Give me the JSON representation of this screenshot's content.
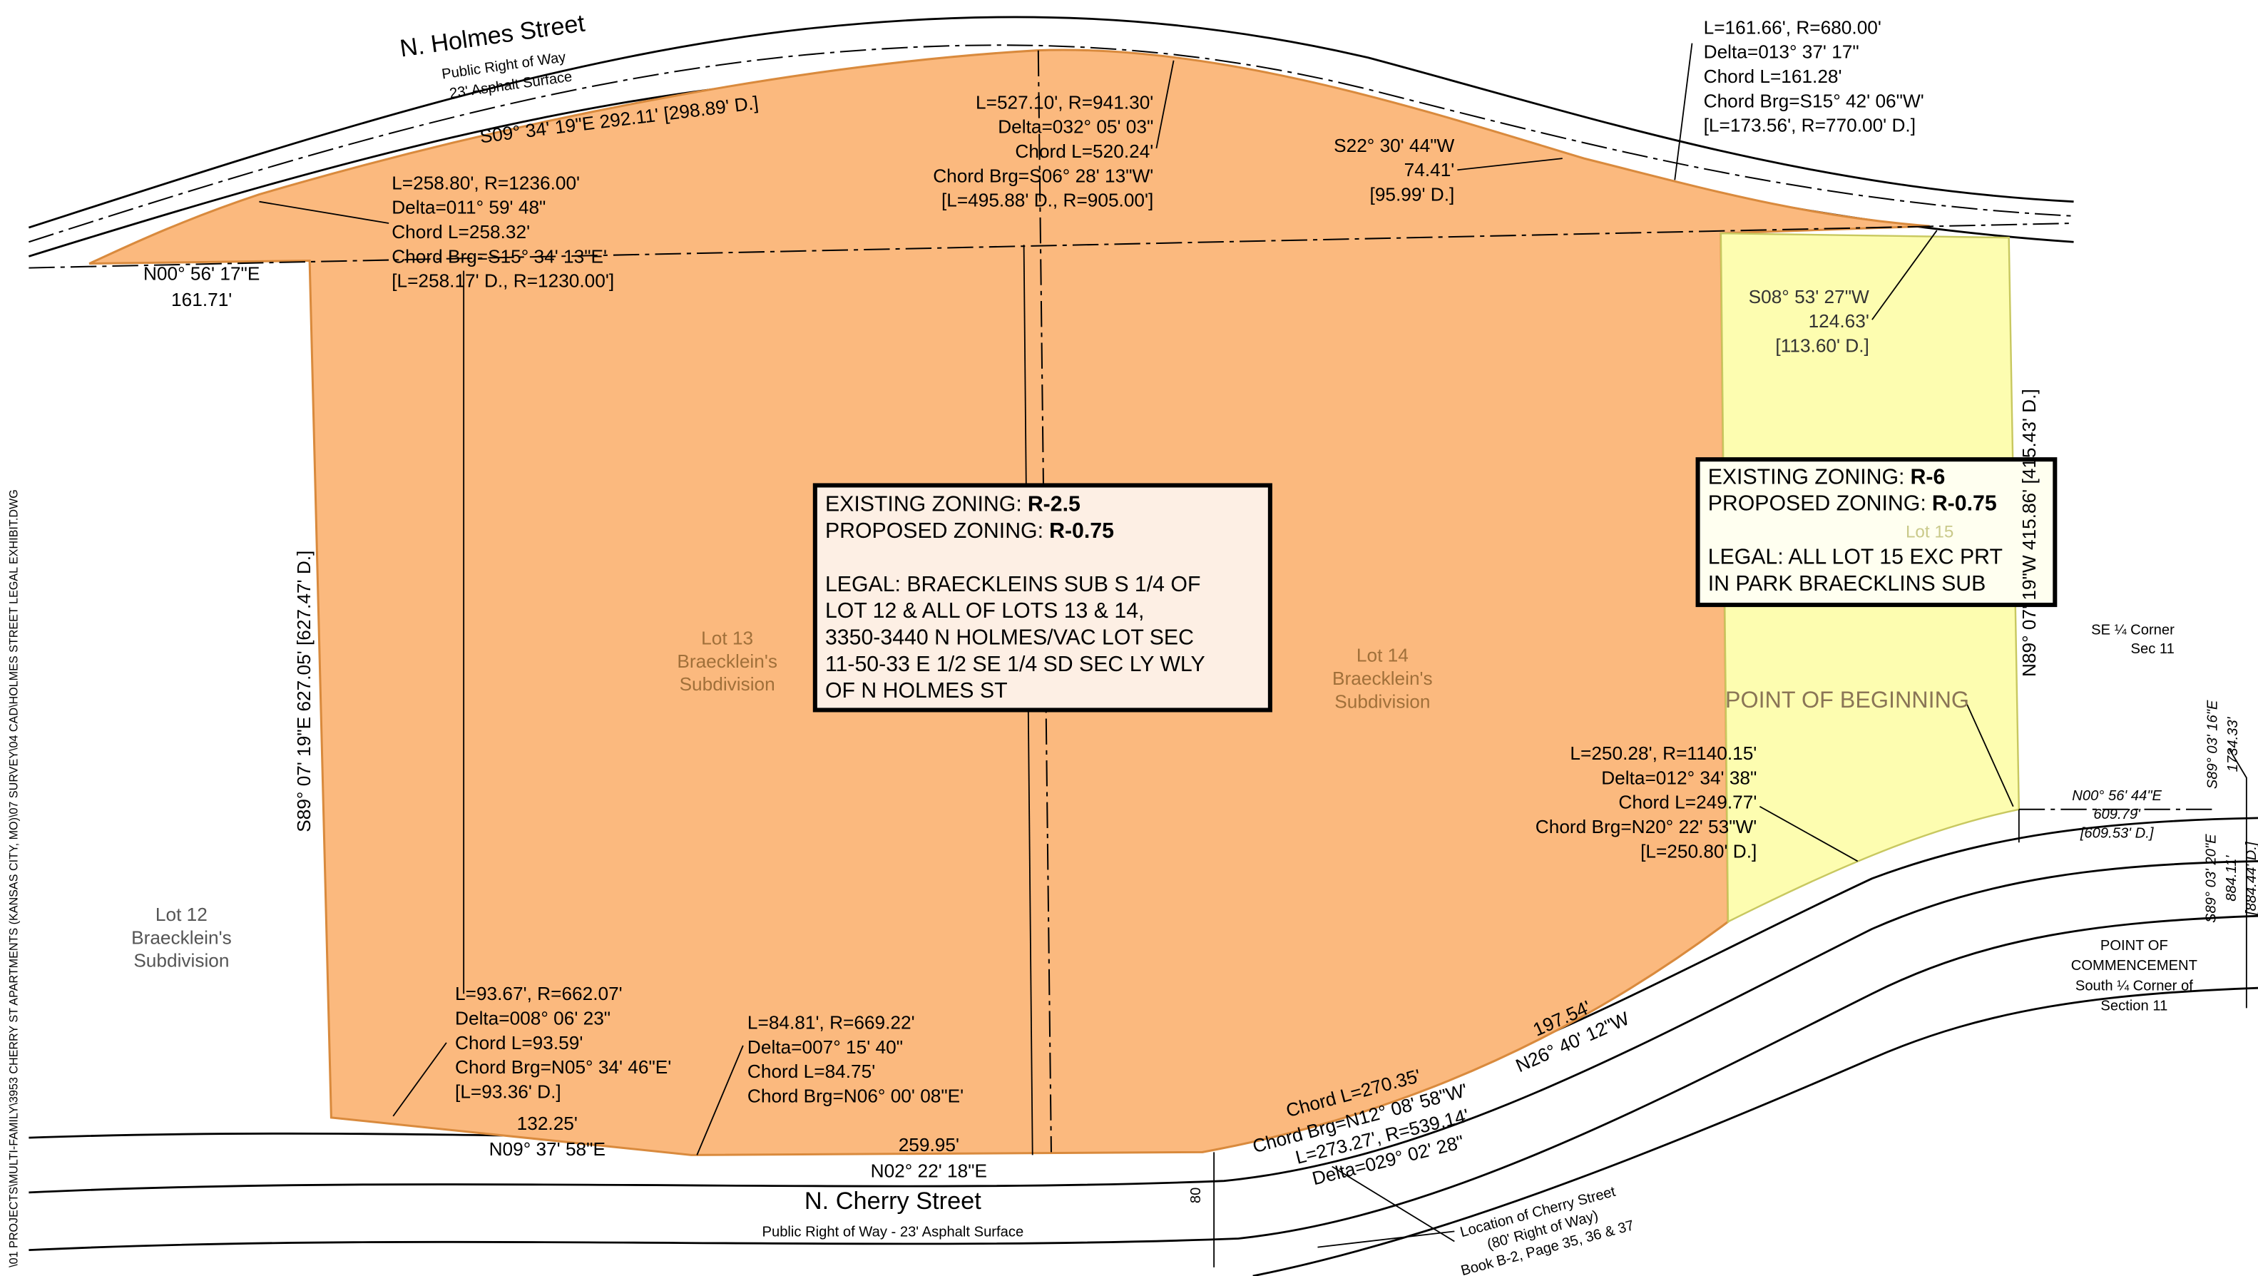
{
  "streets": {
    "holmes": {
      "name": "N. Holmes Street",
      "lines": [
        "Public Right of Way",
        "23' Asphalt Surface"
      ]
    },
    "cherry": {
      "name": "N. Cherry Street",
      "subtitle": "Public Right of Way - 23' Asphalt Surface"
    }
  },
  "zoning": [
    {
      "existing_label": "EXISTING ZONING:",
      "existing": "R-2.5",
      "proposed_label": "PROPOSED ZONING:",
      "proposed": "R-0.75",
      "legal": [
        "LEGAL: BRAECKLEINS SUB S 1/4 OF",
        "LOT 12 & ALL OF LOTS 13 & 14,",
        "3350-3440 N HOLMES/VAC LOT SEC",
        "11-50-33 E 1/2 SE 1/4 SD SEC LY WLY",
        "OF N HOLMES ST"
      ]
    },
    {
      "existing_label": "EXISTING ZONING:",
      "existing": "R-6",
      "proposed_label": "PROPOSED ZONING:",
      "proposed": "R-0.75",
      "legal": [
        "LEGAL: ALL LOT 15 EXC PRT",
        "IN PARK BRAECKLINS SUB"
      ]
    }
  ],
  "annotations": [
    {
      "lines": [
        "S09° 34' 19\"E  292.11' [298.89' D.]"
      ]
    },
    {
      "lines": [
        "L=258.80', R=1236.00'",
        "Delta=011° 59' 48\"",
        "Chord L=258.32'",
        "Chord Brg=S15° 34' 13\"E'",
        "[L=258.17' D., R=1230.00']"
      ]
    },
    {
      "lines": [
        "N00° 56' 17\"E",
        "161.71'"
      ]
    },
    {
      "lines": [
        "L=527.10', R=941.30'",
        "Delta=032° 05' 03\"",
        "Chord L=520.24'",
        "Chord Brg=S06° 28' 13\"W'",
        "[L=495.88' D., R=905.00']"
      ]
    },
    {
      "lines": [
        "S22° 30' 44\"W",
        "74.41'",
        "[95.99' D.]"
      ]
    },
    {
      "lines": [
        "L=161.66', R=680.00'",
        "Delta=013° 37' 17\"",
        "Chord L=161.28'",
        "Chord Brg=S15° 42' 06\"W'",
        "[L=173.56', R=770.00' D.]"
      ]
    },
    {
      "lines": [
        "S08° 53' 27\"W",
        "124.63'",
        "[113.60' D.]"
      ]
    },
    {
      "lines": [
        "Lot 13",
        "Braecklein's",
        "Subdivision"
      ]
    },
    {
      "lines": [
        "Lot 14",
        "Braecklein's",
        "Subdivision"
      ]
    },
    {
      "lines": [
        "Lot 12",
        "Braecklein's",
        "Subdivision"
      ]
    },
    {
      "lines": [
        "Lot 15"
      ]
    },
    {
      "lines": [
        "S89° 07' 19\"E  627.05' [627.47' D.]"
      ]
    },
    {
      "lines": [
        "N89° 07' 19\"W  415.86' [415.43' D.]"
      ]
    },
    {
      "lines": [
        "POINT OF BEGINNING"
      ]
    },
    {
      "lines": [
        "L=250.28', R=1140.15'",
        "Delta=012° 34' 38\"",
        "Chord L=249.77'",
        "Chord Brg=N20° 22' 53\"W'",
        "[L=250.80' D.]"
      ]
    },
    {
      "lines": [
        "SE ¼ Corner",
        "Sec 11"
      ]
    },
    {
      "lines": [
        "N00° 56' 44\"E",
        "609.79'",
        "[609.53' D.]"
      ]
    },
    {
      "lines": [
        "S89° 03' 16\"E",
        "1734.33'"
      ]
    },
    {
      "lines": [
        "S89° 03' 20\"E",
        "884.11'",
        "[884.44' D.]"
      ]
    },
    {
      "lines": [
        "POINT OF",
        "COMMENCEMENT",
        "South ¼ Corner of",
        "Section 11"
      ]
    },
    {
      "lines": [
        "L=93.67', R=662.07'",
        "Delta=008° 06' 23\"",
        "Chord L=93.59'",
        "Chord Brg=N05° 34' 46\"E'",
        "[L=93.36' D.]"
      ]
    },
    {
      "lines": [
        "L=84.81', R=669.22'",
        "Delta=007° 15' 40\"",
        "Chord L=84.75'",
        "Chord Brg=N06° 00' 08\"E'"
      ]
    },
    {
      "lines": [
        "132.25'",
        "N09° 37' 58\"E"
      ]
    },
    {
      "lines": [
        "259.95'",
        "N02° 22' 18\"E"
      ]
    },
    {
      "lines": [
        "Chord L=270.35'",
        "Chord Brg=N12° 08' 58\"W'"
      ]
    },
    {
      "lines": [
        "L=273.27', R=539.14'",
        "Delta=029° 02' 28\""
      ]
    },
    {
      "lines": [
        "197.54'",
        "N26° 40' 12\"W"
      ]
    },
    {
      "lines": [
        "80"
      ]
    },
    {
      "lines": [
        "Location of Cherry Street",
        "(80' Right of Way)",
        "Book B-2, Page 35, 36 & 37"
      ]
    }
  ],
  "file_path": "\\01 PROJECTS\\MULTI-FAMILY\\3953 CHERRY ST APARTMENTS (KANSAS CITY, MO)\\07 SURVEY\\04 CAD\\HOLMES STREET LEGAL EXHIBIT.DWG"
}
